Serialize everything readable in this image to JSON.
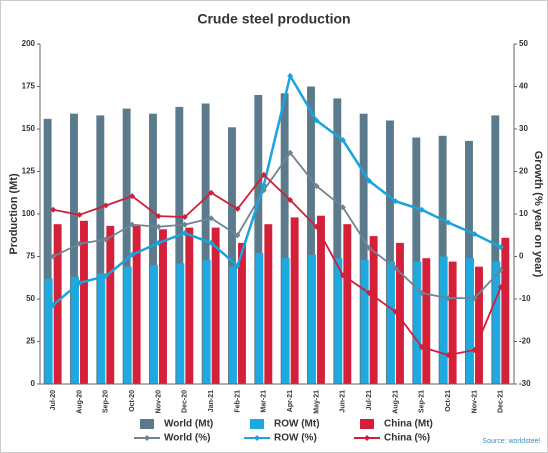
{
  "chart_data": {
    "type": "bar",
    "title": "Crude steel production",
    "source": "Source: worldsteel",
    "y_label": "Production (Mt)",
    "y2_label": "Growth (% year on year)",
    "categories": [
      "Jul-20",
      "Aug-20",
      "Sep-20",
      "Oct-20",
      "Nov-20",
      "Dec-20",
      "Jan-21",
      "Feb-21",
      "Mar-21",
      "Apr-21",
      "May-21",
      "Jun-21",
      "Jul-21",
      "Aug-21",
      "Sep-21",
      "Oct-21",
      "Nov-21",
      "Dec-21"
    ],
    "ylim": [
      0,
      200
    ],
    "yticks": [
      0,
      25,
      50,
      75,
      100,
      125,
      150,
      175,
      200
    ],
    "y2lim": [
      -30,
      50
    ],
    "y2ticks": [
      -30,
      -20,
      -10,
      0,
      10,
      20,
      30,
      40,
      50
    ],
    "grid": false,
    "series": [
      {
        "name": "World (Mt)",
        "type": "bar",
        "color": "#5b7b8d",
        "values": [
          156,
          159,
          158,
          162,
          159,
          163,
          165,
          151,
          170,
          171,
          175,
          168,
          159,
          155,
          145,
          146,
          143,
          158
        ]
      },
      {
        "name": "ROW (Mt)",
        "type": "bar",
        "color": "#1ea9e1",
        "values": [
          62,
          63,
          65,
          69,
          70,
          71,
          73,
          69,
          77,
          74,
          76,
          74,
          73,
          72,
          72,
          75,
          74,
          72
        ]
      },
      {
        "name": "China (Mt)",
        "type": "bar",
        "color": "#d5203a",
        "values": [
          94,
          96,
          93,
          93,
          91,
          92,
          92,
          83,
          94,
          98,
          99,
          94,
          87,
          83,
          74,
          72,
          69,
          86
        ]
      },
      {
        "name": "World (%)",
        "type": "line",
        "axis": "y2",
        "color": "#6f8596",
        "values": [
          0,
          3,
          4,
          7.5,
          7,
          7.5,
          9,
          5,
          15.6,
          24.4,
          16.6,
          11.6,
          2,
          -2.7,
          -8.6,
          -9.8,
          -9.8,
          -3.2
        ]
      },
      {
        "name": "ROW (%)",
        "type": "line",
        "axis": "y2",
        "color": "#1aa3dc",
        "values": [
          -11.4,
          -6.2,
          -4.6,
          0.4,
          3.2,
          5.5,
          3.2,
          -2.2,
          16.8,
          42.5,
          32,
          27.4,
          17.8,
          13,
          11,
          8,
          5.3,
          2.2
        ]
      },
      {
        "name": "China (%)",
        "type": "line",
        "axis": "y2",
        "color": "#d11f3a",
        "values": [
          11,
          9.8,
          12,
          14.2,
          9.5,
          9.3,
          15,
          11.2,
          19.2,
          13.3,
          7,
          -4.4,
          -8.6,
          -13,
          -21.3,
          -23.2,
          -22,
          -7.2
        ]
      }
    ]
  }
}
